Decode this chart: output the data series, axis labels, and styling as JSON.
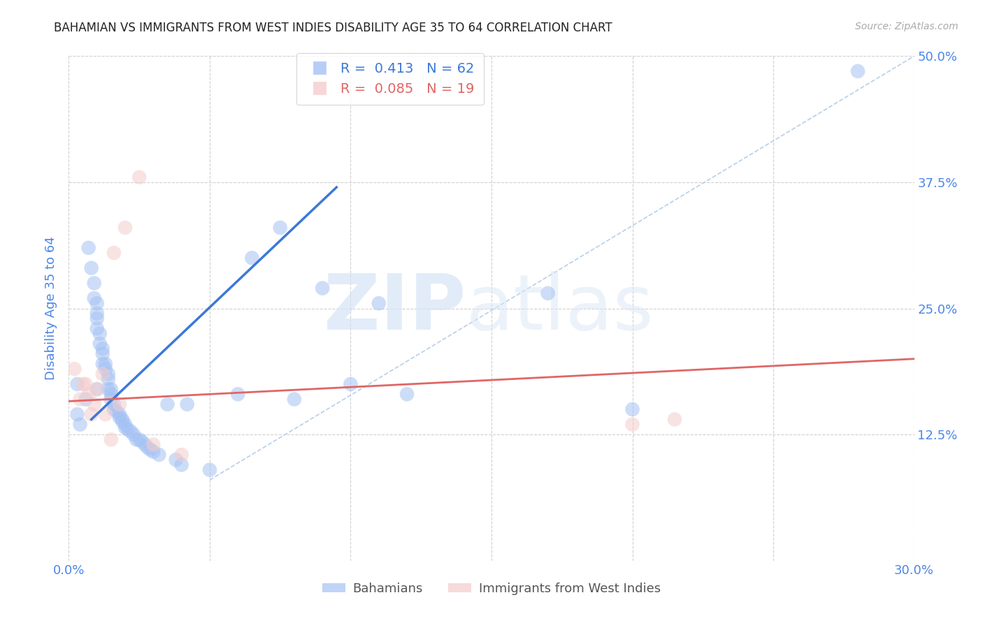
{
  "title": "BAHAMIAN VS IMMIGRANTS FROM WEST INDIES DISABILITY AGE 35 TO 64 CORRELATION CHART",
  "source": "Source: ZipAtlas.com",
  "ylabel": "Disability Age 35 to 64",
  "watermark_zip": "ZIP",
  "watermark_atlas": "atlas",
  "xlim": [
    0.0,
    0.3
  ],
  "ylim": [
    0.0,
    0.5
  ],
  "xticks": [
    0.0,
    0.05,
    0.1,
    0.15,
    0.2,
    0.25,
    0.3
  ],
  "xticklabels": [
    "0.0%",
    "",
    "",
    "",
    "",
    "",
    "30.0%"
  ],
  "yticks": [
    0.0,
    0.125,
    0.25,
    0.375,
    0.5
  ],
  "yticklabels": [
    "",
    "12.5%",
    "25.0%",
    "37.5%",
    "50.0%"
  ],
  "legend1_label": "Bahamians",
  "legend2_label": "Immigrants from West Indies",
  "r1": "0.413",
  "n1": "62",
  "r2": "0.085",
  "n2": "19",
  "blue_color": "#a4c2f4",
  "pink_color": "#f4cccc",
  "blue_line_color": "#3c78d8",
  "pink_line_color": "#e06666",
  "dashed_line_color": "#b7cfe8",
  "tick_color": "#4a86e8",
  "grid_color": "#d0d0d0",
  "blue_scatter_x": [
    0.003,
    0.006,
    0.007,
    0.008,
    0.009,
    0.009,
    0.01,
    0.01,
    0.01,
    0.01,
    0.011,
    0.011,
    0.012,
    0.012,
    0.012,
    0.013,
    0.013,
    0.014,
    0.014,
    0.014,
    0.015,
    0.015,
    0.015,
    0.016,
    0.016,
    0.017,
    0.018,
    0.018,
    0.019,
    0.019,
    0.02,
    0.02,
    0.021,
    0.022,
    0.023,
    0.024,
    0.025,
    0.026,
    0.027,
    0.028,
    0.029,
    0.03,
    0.032,
    0.035,
    0.038,
    0.04,
    0.042,
    0.05,
    0.06,
    0.065,
    0.075,
    0.08,
    0.09,
    0.1,
    0.11,
    0.12,
    0.17,
    0.2,
    0.28,
    0.003,
    0.004,
    0.01
  ],
  "blue_scatter_y": [
    0.175,
    0.16,
    0.31,
    0.29,
    0.275,
    0.26,
    0.255,
    0.245,
    0.24,
    0.23,
    0.225,
    0.215,
    0.21,
    0.205,
    0.195,
    0.195,
    0.19,
    0.185,
    0.18,
    0.17,
    0.17,
    0.165,
    0.16,
    0.155,
    0.15,
    0.148,
    0.145,
    0.142,
    0.14,
    0.138,
    0.135,
    0.132,
    0.13,
    0.128,
    0.125,
    0.12,
    0.12,
    0.118,
    0.115,
    0.112,
    0.11,
    0.108,
    0.105,
    0.155,
    0.1,
    0.095,
    0.155,
    0.09,
    0.165,
    0.3,
    0.33,
    0.16,
    0.27,
    0.175,
    0.255,
    0.165,
    0.265,
    0.15,
    0.485,
    0.145,
    0.135,
    0.17
  ],
  "pink_scatter_x": [
    0.002,
    0.004,
    0.006,
    0.007,
    0.009,
    0.01,
    0.012,
    0.013,
    0.015,
    0.016,
    0.018,
    0.02,
    0.025,
    0.03,
    0.04,
    0.2,
    0.215,
    0.005,
    0.008
  ],
  "pink_scatter_y": [
    0.19,
    0.16,
    0.175,
    0.165,
    0.155,
    0.17,
    0.185,
    0.145,
    0.12,
    0.305,
    0.155,
    0.33,
    0.38,
    0.115,
    0.105,
    0.135,
    0.14,
    0.175,
    0.145
  ],
  "blue_trend_x": [
    0.008,
    0.095
  ],
  "blue_trend_y": [
    0.14,
    0.37
  ],
  "pink_trend_x": [
    0.0,
    0.3
  ],
  "pink_trend_y": [
    0.158,
    0.2
  ],
  "diag_line_x": [
    0.05,
    0.3
  ],
  "diag_line_y": [
    0.08,
    0.5
  ]
}
